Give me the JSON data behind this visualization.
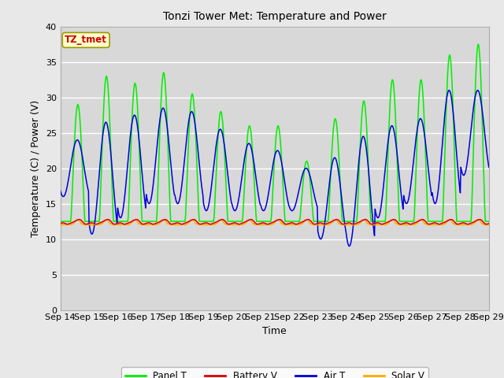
{
  "title": "Tonzi Tower Met: Temperature and Power",
  "xlabel": "Time",
  "ylabel": "Temperature (C) / Power (V)",
  "ylim": [
    0,
    40
  ],
  "yticks": [
    0,
    5,
    10,
    15,
    20,
    25,
    30,
    35,
    40
  ],
  "xtick_labels": [
    "Sep 14",
    "Sep 15",
    "Sep 16",
    "Sep 17",
    "Sep 18",
    "Sep 19",
    "Sep 20",
    "Sep 21",
    "Sep 22",
    "Sep 23",
    "Sep 24",
    "Sep 25",
    "Sep 26",
    "Sep 27",
    "Sep 28",
    "Sep 29"
  ],
  "annotation_text": "TZ_tmet",
  "annotation_color": "#cc0000",
  "annotation_bg": "#ffffcc",
  "annotation_edge": "#999900",
  "fig_bg_color": "#e8e8e8",
  "plot_bg_color": "#d8d8d8",
  "legend_bg": "#ffffff",
  "grid_color": "#ffffff",
  "panel_T_color": "#00ee00",
  "battery_V_color": "#dd0000",
  "air_T_color": "#0000dd",
  "solar_V_color": "#ffaa00",
  "legend_labels": [
    "Panel T",
    "Battery V",
    "Air T",
    "Solar V"
  ],
  "n_days": 15,
  "pts_per_day": 48,
  "day_peaks_panel": [
    29,
    33,
    32,
    33.5,
    30.5,
    28,
    26,
    26,
    21,
    27,
    29.5,
    32.5,
    32.5,
    36,
    37.5
  ],
  "day_peaks_air": [
    24,
    26.5,
    27.5,
    28.5,
    28,
    25.5,
    23.5,
    22.5,
    20,
    21.5,
    24.5,
    26,
    27,
    31,
    31
  ],
  "day_troughs_air": [
    16,
    10.7,
    13,
    15,
    15,
    14,
    14,
    14,
    14,
    10,
    9,
    13,
    15,
    15,
    19
  ],
  "panel_trough": 12.5,
  "battery_base": 12.5,
  "solar_base": 12.0
}
